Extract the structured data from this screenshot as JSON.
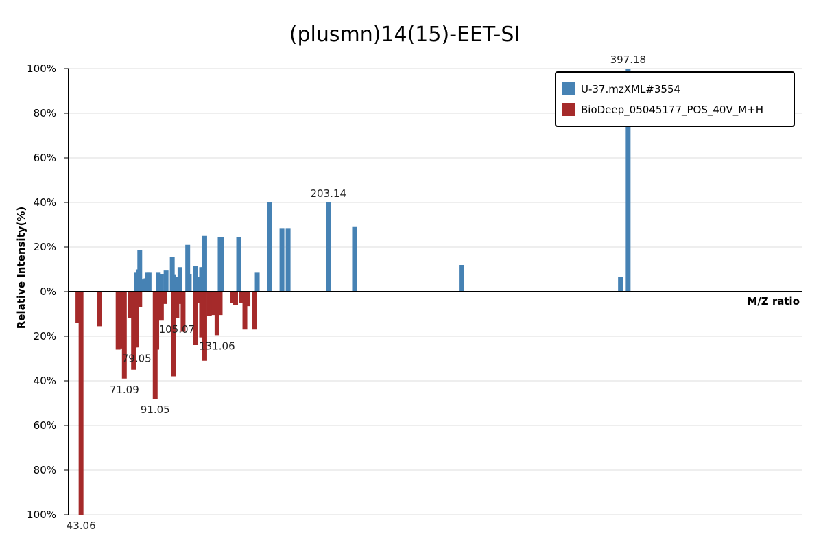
{
  "chart_data": {
    "type": "bar",
    "title": "(plusmn)14(15)-EET-SI",
    "xlabel": "M/Z ratio",
    "ylabel": "Relative Intensity(%)",
    "xlim": [
      35,
      510
    ],
    "ylim": [
      -100,
      100
    ],
    "yticks": [
      {
        "value": 100,
        "label": "100%"
      },
      {
        "value": 80,
        "label": "80%"
      },
      {
        "value": 60,
        "label": "60%"
      },
      {
        "value": 40,
        "label": "40%"
      },
      {
        "value": 20,
        "label": "20%"
      },
      {
        "value": 0,
        "label": "0%"
      },
      {
        "value": -20,
        "label": "20%"
      },
      {
        "value": -40,
        "label": "40%"
      },
      {
        "value": -60,
        "label": "60%"
      },
      {
        "value": -80,
        "label": "80%"
      },
      {
        "value": -100,
        "label": "100%"
      }
    ],
    "grid": true,
    "legend_position": "top-right",
    "series": [
      {
        "name": "U-37.mzXML#3554",
        "color": "#4682b4",
        "direction": "up",
        "x": [
          79.05,
          80.05,
          81.07,
          82.07,
          85.1,
          86.1,
          87.1,
          93.06,
          95.08,
          98.1,
          102.1,
          103.1,
          105.1,
          106.2,
          107.1,
          112.1,
          113.1,
          117.1,
          118.1,
          119.1,
          121.1,
          122.1,
          123.1,
          133.1,
          134.2,
          145.1,
          157.1,
          165.1,
          173.1,
          177.1,
          203.14,
          220.1,
          289.2,
          392.2,
          397.18
        ],
        "y": [
          8.5,
          10,
          18.5,
          5.5,
          6,
          8.5,
          8.5,
          8.5,
          8,
          9.5,
          15.5,
          7.5,
          5.5,
          6.5,
          11,
          21,
          8,
          11.5,
          6.5,
          6.5,
          11,
          11,
          25,
          24.5,
          24.5,
          24.5,
          8.5,
          40,
          28.5,
          28.5,
          40,
          29,
          12,
          6.5,
          100
        ]
      },
      {
        "name": "BioDeep_05045177_POS_40V_M+H",
        "color": "#a52a2a",
        "direction": "down",
        "x": [
          41.04,
          43.06,
          55.05,
          67.05,
          69.07,
          71.09,
          75.1,
          77.04,
          78.05,
          79.05,
          81.07,
          91.05,
          92.06,
          95.08,
          97.1,
          103.08,
          105.07,
          107.09,
          109.1,
          117.07,
          119.09,
          121.1,
          123.1,
          126.1,
          128.1,
          129.1,
          131.06,
          133.1,
          141.1,
          143.1,
          147.1,
          149.1,
          151.1,
          155.1
        ],
        "y": [
          14,
          100,
          15.5,
          26,
          25.5,
          39,
          12,
          35,
          25,
          25,
          7,
          48,
          26,
          13,
          5.5,
          38,
          12,
          5.5,
          18,
          24,
          5,
          20.5,
          31,
          11,
          6,
          10.5,
          19.5,
          10.5,
          5,
          6,
          5,
          17,
          6.5,
          17
        ]
      }
    ],
    "peak_labels": [
      {
        "series": 1,
        "x": 43.06,
        "text": "43.06"
      },
      {
        "series": 1,
        "x": 71.09,
        "text": "71.09"
      },
      {
        "series": 1,
        "x": 79.05,
        "text": "79.05"
      },
      {
        "series": 1,
        "x": 91.05,
        "text": "91.05"
      },
      {
        "series": 1,
        "x": 105.07,
        "text": "105.07"
      },
      {
        "series": 1,
        "x": 131.06,
        "text": "131.06"
      },
      {
        "series": 0,
        "x": 203.14,
        "text": "203.14"
      },
      {
        "series": 0,
        "x": 397.18,
        "text": "397.18"
      }
    ]
  }
}
